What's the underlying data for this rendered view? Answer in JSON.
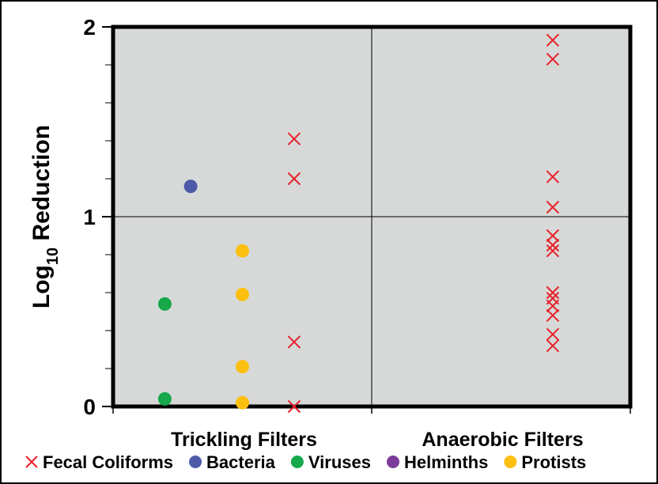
{
  "chart_data": {
    "type": "scatter",
    "ylabel_main": "Log",
    "ylabel_sub": "10",
    "ylabel_rest": " Reduction",
    "ylim": [
      0,
      2
    ],
    "y_ticks": [
      0,
      1,
      2
    ],
    "y_tick_labels": [
      "0",
      "1",
      "2"
    ],
    "categories": [
      "Trickling Filters",
      "Anaerobic Filters"
    ],
    "grid": true,
    "legend_position": "bottom",
    "series": [
      {
        "name": "Fecal Coliforms",
        "marker": "x",
        "color": "#e8202a",
        "points": [
          {
            "cat": 0,
            "offset": 0.2,
            "y": 1.41
          },
          {
            "cat": 0,
            "offset": 0.2,
            "y": 1.2
          },
          {
            "cat": 0,
            "offset": 0.2,
            "y": 0.34
          },
          {
            "cat": 0,
            "offset": 0.2,
            "y": 0.0
          },
          {
            "cat": 1,
            "offset": 0.2,
            "y": 1.93
          },
          {
            "cat": 1,
            "offset": 0.2,
            "y": 1.83
          },
          {
            "cat": 1,
            "offset": 0.2,
            "y": 1.21
          },
          {
            "cat": 1,
            "offset": 0.2,
            "y": 1.05
          },
          {
            "cat": 1,
            "offset": 0.2,
            "y": 0.9
          },
          {
            "cat": 1,
            "offset": 0.2,
            "y": 0.85
          },
          {
            "cat": 1,
            "offset": 0.2,
            "y": 0.82
          },
          {
            "cat": 1,
            "offset": 0.2,
            "y": 0.6
          },
          {
            "cat": 1,
            "offset": 0.2,
            "y": 0.57
          },
          {
            "cat": 1,
            "offset": 0.2,
            "y": 0.53
          },
          {
            "cat": 1,
            "offset": 0.2,
            "y": 0.48
          },
          {
            "cat": 1,
            "offset": 0.2,
            "y": 0.38
          },
          {
            "cat": 1,
            "offset": 0.2,
            "y": 0.32
          }
        ]
      },
      {
        "name": "Bacteria",
        "marker": "circle",
        "color": "#4c5aa8",
        "points": [
          {
            "cat": 0,
            "offset": -0.2,
            "y": 1.16
          }
        ]
      },
      {
        "name": "Viruses",
        "marker": "circle",
        "color": "#16a84a",
        "points": [
          {
            "cat": 0,
            "offset": -0.3,
            "y": 0.54
          },
          {
            "cat": 0,
            "offset": -0.3,
            "y": 0.04
          }
        ]
      },
      {
        "name": "Helminths",
        "marker": "circle",
        "color": "#7b3b9a",
        "points": []
      },
      {
        "name": "Protists",
        "marker": "circle",
        "color": "#fcc010",
        "points": [
          {
            "cat": 0,
            "offset": 0.0,
            "y": 0.82
          },
          {
            "cat": 0,
            "offset": 0.0,
            "y": 0.59
          },
          {
            "cat": 0,
            "offset": 0.0,
            "y": 0.21
          },
          {
            "cat": 0,
            "offset": 0.0,
            "y": 0.02
          }
        ]
      }
    ],
    "plot_background": "#d6d9d8"
  }
}
